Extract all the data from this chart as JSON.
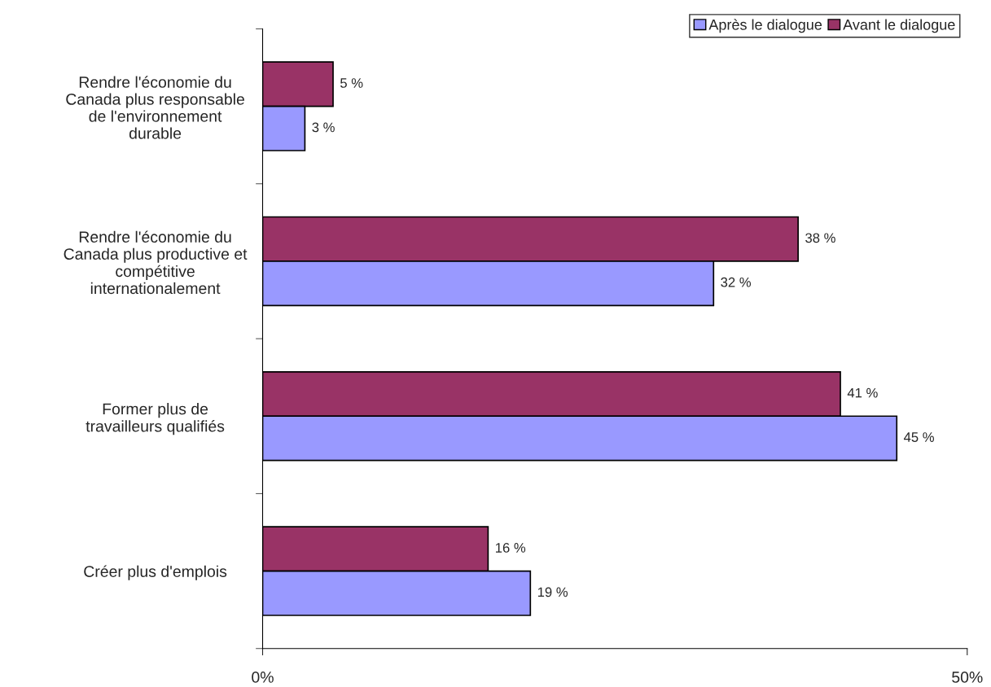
{
  "chart_data": {
    "type": "bar",
    "orientation": "horizontal",
    "categories": [
      "Rendre l'économie du\nCanada plus responsable\nde l'environnement\ndurable",
      "Rendre l'économie du\nCanada plus productive et\ncompétitive\ninternationalement",
      "Former plus de\ntravailleurs qualifiés",
      "Créer plus d'emplois"
    ],
    "series": [
      {
        "name": "Avant le dialogue",
        "color": "#993366",
        "values": [
          5,
          38,
          41,
          16
        ],
        "value_labels": [
          "5 %",
          "38 %",
          "41 %",
          "16 %"
        ]
      },
      {
        "name": "Après le dialogue",
        "color": "#9999ff",
        "values": [
          3,
          32,
          45,
          19
        ],
        "value_labels": [
          "3 %",
          "32 %",
          "45 %",
          "19 %"
        ]
      }
    ],
    "xlim": [
      0,
      50
    ],
    "xticks": [
      {
        "value": 0,
        "label": "0%"
      },
      {
        "value": 50,
        "label": "50%"
      }
    ],
    "grid": false,
    "legend": "top right"
  }
}
